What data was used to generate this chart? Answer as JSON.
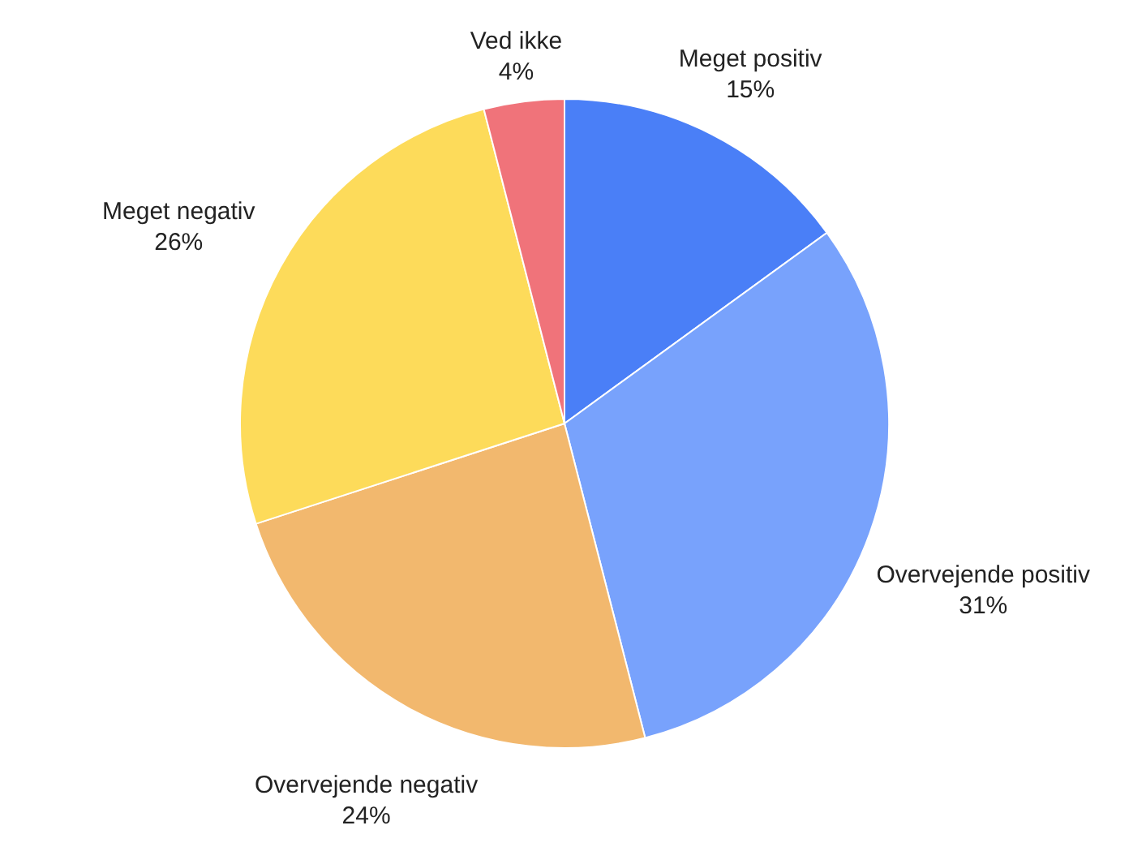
{
  "chart_data": {
    "type": "pie",
    "categories": [
      "Meget positiv",
      "Overvejende positiv",
      "Overvejende negativ",
      "Meget negativ",
      "Ved ikke"
    ],
    "values": [
      15,
      31,
      24,
      26,
      4
    ],
    "value_labels": [
      "15%",
      "31%",
      "24%",
      "26%",
      "4%"
    ],
    "colors": [
      "#4a7ff7",
      "#78a2fc",
      "#f2b86e",
      "#fddb5a",
      "#f0737a"
    ]
  }
}
